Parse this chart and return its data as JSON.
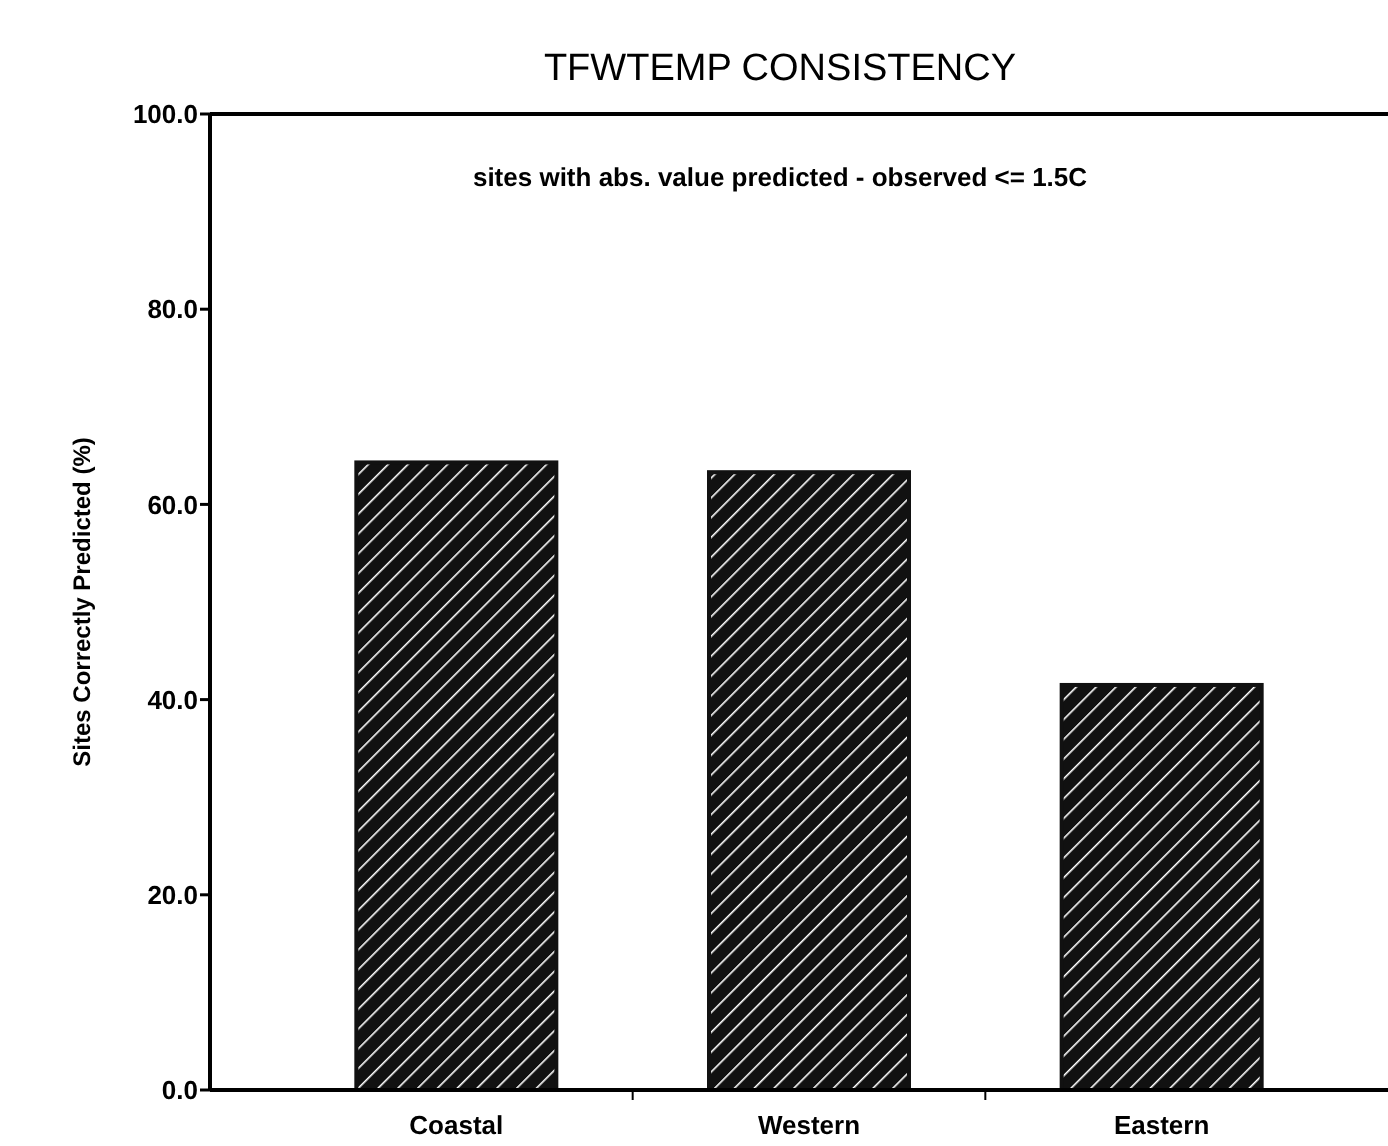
{
  "chart_data": {
    "type": "bar",
    "title": "TFWTEMP CONSISTENCY",
    "ylabel": "Sites Correctly Predicted (%)",
    "categories": [
      "Coastal",
      "Western",
      "Eastern"
    ],
    "values": [
      64.3,
      63.3,
      41.5
    ],
    "color": "#111111",
    "ylim": [
      0,
      100
    ],
    "yticks": [
      {
        "value": 0,
        "label": "0.0"
      },
      {
        "value": 20,
        "label": "20.0"
      },
      {
        "value": 40,
        "label": "40.0"
      },
      {
        "value": 60,
        "label": "60.0"
      },
      {
        "value": 80,
        "label": "80.0"
      },
      {
        "value": 100,
        "label": "100.0"
      }
    ],
    "annotations": [
      "sites with abs. value predicted - observed <= 1.5C"
    ]
  }
}
